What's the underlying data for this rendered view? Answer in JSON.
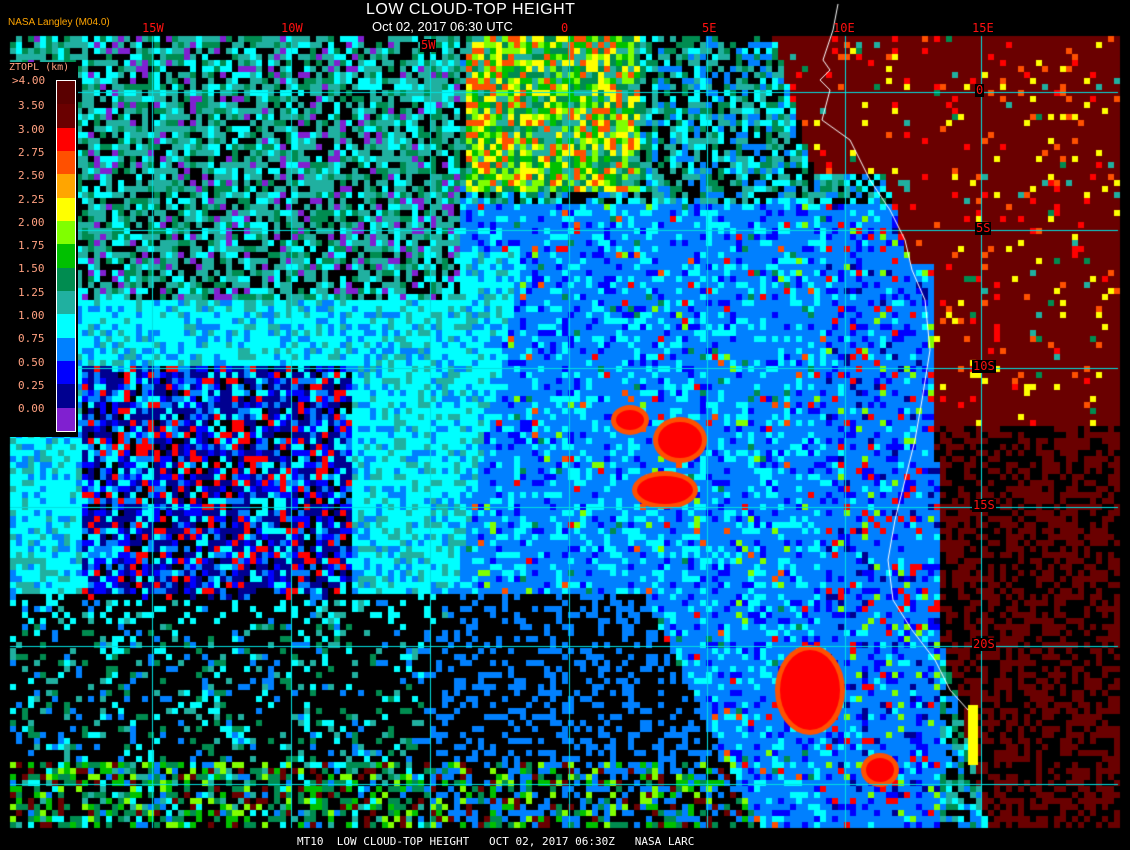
{
  "header": {
    "title": "LOW CLOUD-TOP HEIGHT",
    "subtitle": "Oct 02, 2017 06:30 UTC",
    "credit": "NASA Langley (M04.0)"
  },
  "grid": {
    "longitude_labels": [
      "15W",
      "10W",
      "5W",
      "0",
      "5E",
      "10E",
      "15E"
    ],
    "latitude_labels": [
      "0",
      "5S",
      "10S",
      "15S",
      "20S"
    ],
    "line_color": "#00e0e0",
    "label_color": "#ff1010",
    "coastline_color": "#ffffff"
  },
  "legend": {
    "title": "ZTOPL (km)",
    "levels": [
      {
        "label": ">4.00",
        "color": "#5a0000"
      },
      {
        "label": "3.50",
        "color": "#6a0000"
      },
      {
        "label": "3.00",
        "color": "#ff0000"
      },
      {
        "label": "2.75",
        "color": "#ff5000"
      },
      {
        "label": "2.50",
        "color": "#ffa500"
      },
      {
        "label": "2.25",
        "color": "#ffff00"
      },
      {
        "label": "2.00",
        "color": "#80ff00"
      },
      {
        "label": "1.75",
        "color": "#00c000"
      },
      {
        "label": "1.50",
        "color": "#008c50"
      },
      {
        "label": "1.25",
        "color": "#20b0a0"
      },
      {
        "label": "1.00",
        "color": "#00ffff"
      },
      {
        "label": "0.75",
        "color": "#0080ff"
      },
      {
        "label": "0.50",
        "color": "#0000ff"
      },
      {
        "label": "0.25",
        "color": "#000090"
      },
      {
        "label": "0.00",
        "color": "#8020d0"
      }
    ]
  },
  "footer": "MT10  LOW CLOUD-TOP HEIGHT   OCT 02, 2017 06:30Z   NASA LARC"
}
